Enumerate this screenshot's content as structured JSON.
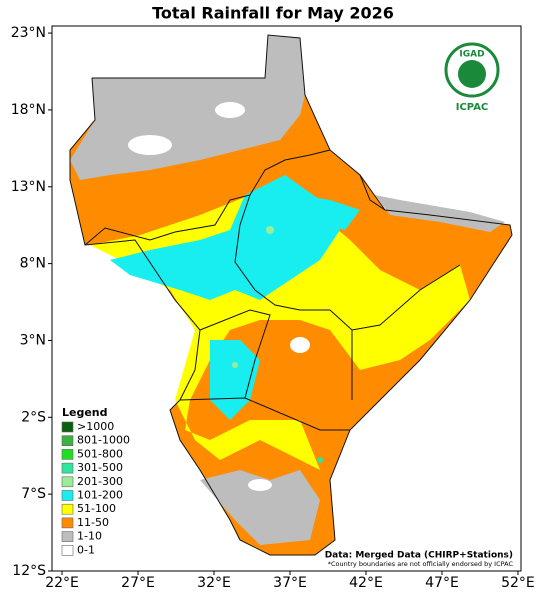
{
  "map": {
    "title": "Total Rainfall for May 2026",
    "xlim": [
      21.34,
      52.2
    ],
    "ylim": [
      -12,
      23.46
    ],
    "xticks": [
      {
        "value": 22,
        "label": "22°E"
      },
      {
        "value": 27,
        "label": "27°E"
      },
      {
        "value": 32,
        "label": "32°E"
      },
      {
        "value": 37,
        "label": "37°E"
      },
      {
        "value": 42,
        "label": "42°E"
      },
      {
        "value": 47,
        "label": "47°E"
      },
      {
        "value": 52,
        "label": "52°E"
      }
    ],
    "yticks": [
      {
        "value": 23,
        "label": "23°N"
      },
      {
        "value": 18,
        "label": "18°N"
      },
      {
        "value": 13,
        "label": "13°N"
      },
      {
        "value": 8,
        "label": "8°N"
      },
      {
        "value": 3,
        "label": "3°N"
      },
      {
        "value": -2,
        "label": "2°S"
      },
      {
        "value": -7,
        "label": "7°S"
      },
      {
        "value": -12,
        "label": "12°S"
      }
    ],
    "legend": {
      "title": "Legend",
      "items": [
        {
          "label": ">1000",
          "color": "#0b5e0b"
        },
        {
          "label": "801-1000",
          "color": "#3cb043"
        },
        {
          "label": "501-800",
          "color": "#1ee01e"
        },
        {
          "label": "301-500",
          "color": "#2ee6a0"
        },
        {
          "label": "201-300",
          "color": "#98ee98"
        },
        {
          "label": "101-200",
          "color": "#18eef0"
        },
        {
          "label": "51-100",
          "color": "#ffff00"
        },
        {
          "label": "11-50",
          "color": "#ff8c00"
        },
        {
          "label": "1-10",
          "color": "#bdbdbd"
        },
        {
          "label": "0-1",
          "color": "#ffffff"
        }
      ]
    },
    "source": "Data: Merged Data (CHIRP+Stations)",
    "note": "*Country boundaries are not officially endorsed by ICPAC",
    "logo": {
      "name": "IGAD",
      "org": "ICPAC"
    }
  }
}
